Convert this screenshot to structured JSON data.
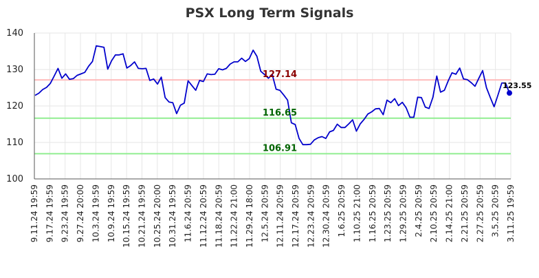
{
  "chart_data": {
    "type": "line",
    "title": "PSX Long Term Signals",
    "xlabel": "",
    "ylabel": "",
    "ylim": [
      100,
      140
    ],
    "yticks": [
      "100",
      "110",
      "120",
      "130",
      "140"
    ],
    "grid": true,
    "x_tick_labels": [
      "9.11.24 19:59",
      "9.17.24 19:59",
      "9.23.24 19:59",
      "9.27.24 20:00",
      "10.3.24 19:59",
      "10.9.24 19:59",
      "10.15.24 19:59",
      "10.21.24 19:59",
      "10.25.24 20:00",
      "10.31.24 19:59",
      "11.6.24 20:59",
      "11.12.24 20:59",
      "11.18.24 20:59",
      "11.22.24 21:00",
      "11.29.24 18:00",
      "12.5.24 20:59",
      "12.11.24 20:59",
      "12.17.24 20:59",
      "12.23.24 20:59",
      "12.30.24 20:59",
      "1.6.25 20:59",
      "1.10.25 21:00",
      "1.16.25 20:59",
      "1.23.25 20:59",
      "1.29.25 20:59",
      "2.4.25 20:59",
      "2.10.25 20:59",
      "2.14.25 21:00",
      "2.21.25 20:59",
      "2.27.25 20:59",
      "3.5.25 20:59",
      "3.11.25 19:59"
    ],
    "series": [
      {
        "color": "#0000cc",
        "values": [
          122.9,
          123.5,
          124.5,
          125.1,
          126.2,
          128.2,
          130.3,
          127.6,
          128.8,
          127.3,
          127.5,
          128.4,
          128.8,
          129.2,
          130.9,
          132.2,
          136.5,
          136.3,
          136.1,
          130.1,
          132.4,
          134.0,
          134.0,
          134.3,
          130.4,
          131.1,
          132.1,
          130.3,
          130.2,
          130.3,
          127.0,
          127.4,
          126.0,
          127.9,
          122.3,
          121.1,
          120.9,
          117.9,
          120.2,
          120.8,
          126.9,
          125.6,
          124.3,
          127.0,
          126.7,
          128.8,
          128.6,
          128.7,
          130.2,
          129.9,
          130.3,
          131.5,
          132.1,
          132.1,
          133.1,
          132.2,
          133.0,
          135.3,
          133.6,
          129.5,
          128.6,
          127.6,
          128.6,
          124.6,
          124.3,
          123.0,
          121.6,
          115.4,
          114.9,
          111.1,
          109.4,
          109.4,
          109.5,
          110.7,
          111.3,
          111.6,
          111.1,
          112.9,
          113.3,
          115.0,
          114.1,
          114.1,
          115.1,
          116.2,
          113.1,
          115.1,
          116.3,
          117.8,
          118.4,
          119.2,
          119.3,
          117.6,
          121.6,
          120.9,
          122.0,
          120.1,
          121.0,
          119.5,
          116.9,
          116.9,
          122.4,
          122.3,
          119.7,
          119.3,
          122.4,
          128.2,
          123.8,
          124.3,
          126.9,
          129.1,
          128.7,
          130.4,
          127.4,
          127.2,
          126.4,
          125.4,
          127.6,
          129.7,
          125.0,
          122.3,
          119.8,
          123.0,
          126.3,
          126.3,
          123.55
        ]
      }
    ],
    "levels": [
      {
        "value": 127.14,
        "label": "127.14",
        "line_color": "#ffbbbb",
        "text_color": "#8b0000"
      },
      {
        "value": 116.65,
        "label": "116.65",
        "line_color": "#90ee90",
        "text_color": "#006400"
      },
      {
        "value": 106.91,
        "label": "106.91",
        "line_color": "#90ee90",
        "text_color": "#006400"
      }
    ],
    "last_point": {
      "value": 123.55,
      "label": "123.55",
      "color": "#0000cc"
    }
  }
}
